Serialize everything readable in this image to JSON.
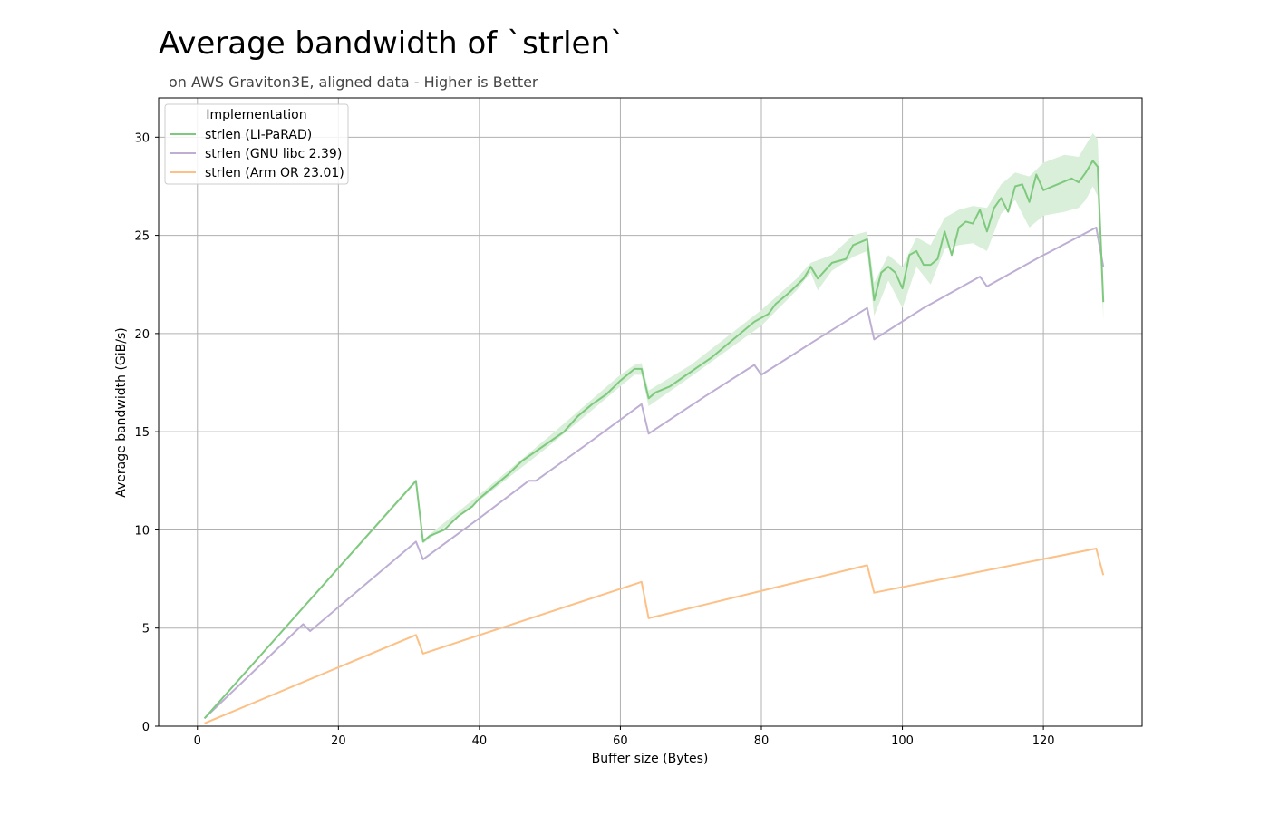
{
  "chart_data": {
    "type": "line",
    "title": "Average bandwidth of `strlen`",
    "subtitle": "on AWS Graviton3E, aligned data - Higher is Better",
    "xlabel": "Buffer size (Bytes)",
    "ylabel": "Average bandwidth (GiB/s)",
    "xlim": [
      -5.5,
      134
    ],
    "ylim": [
      0,
      32
    ],
    "xticks": [
      0,
      20,
      40,
      60,
      80,
      100,
      120
    ],
    "yticks": [
      0,
      5,
      10,
      15,
      20,
      25,
      30
    ],
    "grid": true,
    "legend": {
      "title": "Implementation",
      "position": "top-left"
    },
    "series": [
      {
        "name": "strlen (LI-PaRAD)",
        "color": "#7fc97f",
        "band_color": "#d9efd9",
        "points": [
          [
            1,
            0.4
          ],
          [
            31,
            12.5
          ],
          [
            32,
            9.4
          ],
          [
            33,
            9.7
          ],
          [
            35,
            10.0
          ],
          [
            37,
            10.7
          ],
          [
            39,
            11.2
          ],
          [
            40,
            11.6
          ],
          [
            42,
            12.2
          ],
          [
            44,
            12.8
          ],
          [
            46,
            13.5
          ],
          [
            48,
            14.0
          ],
          [
            50,
            14.5
          ],
          [
            52,
            15.0
          ],
          [
            54,
            15.8
          ],
          [
            56,
            16.4
          ],
          [
            58,
            16.9
          ],
          [
            60,
            17.6
          ],
          [
            62,
            18.2
          ],
          [
            63,
            18.2
          ],
          [
            64,
            16.7
          ],
          [
            65,
            17.0
          ],
          [
            67,
            17.3
          ],
          [
            69,
            17.8
          ],
          [
            71,
            18.3
          ],
          [
            73,
            18.8
          ],
          [
            75,
            19.4
          ],
          [
            77,
            20.0
          ],
          [
            79,
            20.6
          ],
          [
            81,
            21.0
          ],
          [
            82,
            21.5
          ],
          [
            84,
            22.1
          ],
          [
            86,
            22.8
          ],
          [
            87,
            23.4
          ],
          [
            88,
            22.8
          ],
          [
            90,
            23.6
          ],
          [
            92,
            23.8
          ],
          [
            93,
            24.5
          ],
          [
            95,
            24.8
          ],
          [
            96,
            21.7
          ],
          [
            97,
            23.1
          ],
          [
            98,
            23.4
          ],
          [
            99,
            23.1
          ],
          [
            100,
            22.3
          ],
          [
            101,
            24.0
          ],
          [
            102,
            24.2
          ],
          [
            103,
            23.5
          ],
          [
            104,
            23.5
          ],
          [
            105,
            23.8
          ],
          [
            106,
            25.2
          ],
          [
            107,
            24.0
          ],
          [
            108,
            25.4
          ],
          [
            109,
            25.7
          ],
          [
            110,
            25.6
          ],
          [
            111,
            26.3
          ],
          [
            112,
            25.2
          ],
          [
            113,
            26.4
          ],
          [
            114,
            26.9
          ],
          [
            115,
            26.2
          ],
          [
            116,
            27.5
          ],
          [
            117,
            27.6
          ],
          [
            118,
            26.7
          ],
          [
            119,
            28.1
          ],
          [
            120,
            27.3
          ],
          [
            122,
            27.6
          ],
          [
            124,
            27.9
          ],
          [
            125,
            27.7
          ],
          [
            126,
            28.2
          ],
          [
            127,
            28.8
          ],
          [
            127.7,
            28.5
          ],
          [
            128.5,
            21.6
          ]
        ],
        "band_upper": [
          [
            1,
            0.45
          ],
          [
            31,
            12.5
          ],
          [
            32,
            9.5
          ],
          [
            40,
            11.8
          ],
          [
            50,
            14.8
          ],
          [
            60,
            17.9
          ],
          [
            62,
            18.4
          ],
          [
            63,
            18.5
          ],
          [
            64,
            17.1
          ],
          [
            70,
            18.4
          ],
          [
            80,
            21.2
          ],
          [
            85,
            22.8
          ],
          [
            87,
            23.6
          ],
          [
            90,
            24.0
          ],
          [
            93,
            25.0
          ],
          [
            95,
            25.2
          ],
          [
            96,
            22.6
          ],
          [
            98,
            24.0
          ],
          [
            100,
            23.4
          ],
          [
            102,
            24.9
          ],
          [
            104,
            24.5
          ],
          [
            106,
            25.9
          ],
          [
            108,
            26.3
          ],
          [
            110,
            26.5
          ],
          [
            112,
            26.4
          ],
          [
            114,
            27.6
          ],
          [
            116,
            28.2
          ],
          [
            118,
            28.0
          ],
          [
            120,
            28.7
          ],
          [
            123,
            29.1
          ],
          [
            125,
            29.0
          ],
          [
            126,
            29.6
          ],
          [
            127,
            30.2
          ],
          [
            127.7,
            29.9
          ],
          [
            128.5,
            22.5
          ]
        ],
        "band_lower": [
          [
            128.5,
            20.7
          ],
          [
            127.7,
            27.0
          ],
          [
            127,
            27.5
          ],
          [
            126,
            26.8
          ],
          [
            125,
            26.4
          ],
          [
            123,
            26.2
          ],
          [
            120,
            26.0
          ],
          [
            118,
            25.4
          ],
          [
            116,
            26.8
          ],
          [
            114,
            26.1
          ],
          [
            112,
            24.2
          ],
          [
            110,
            24.6
          ],
          [
            108,
            24.5
          ],
          [
            106,
            24.3
          ],
          [
            104,
            22.5
          ],
          [
            102,
            23.4
          ],
          [
            100,
            21.3
          ],
          [
            98,
            22.7
          ],
          [
            96,
            20.9
          ],
          [
            95,
            24.2
          ],
          [
            93,
            23.9
          ],
          [
            90,
            23.2
          ],
          [
            88,
            22.2
          ],
          [
            87,
            23.1
          ],
          [
            85,
            22.2
          ],
          [
            80,
            20.4
          ],
          [
            70,
            17.8
          ],
          [
            64,
            16.3
          ],
          [
            63,
            17.9
          ],
          [
            62,
            17.9
          ],
          [
            60,
            17.3
          ],
          [
            50,
            14.3
          ],
          [
            40,
            11.5
          ],
          [
            32,
            9.3
          ],
          [
            31,
            12.4
          ],
          [
            1,
            0.35
          ]
        ]
      },
      {
        "name": "strlen (GNU libc 2.39)",
        "color": "#beaed4",
        "points": [
          [
            1,
            0.4
          ],
          [
            15,
            5.2
          ],
          [
            16,
            4.85
          ],
          [
            31,
            9.4
          ],
          [
            32,
            8.5
          ],
          [
            40,
            10.6
          ],
          [
            47,
            12.5
          ],
          [
            48,
            12.5
          ],
          [
            55,
            14.3
          ],
          [
            63,
            16.4
          ],
          [
            64,
            14.9
          ],
          [
            72,
            16.8
          ],
          [
            79,
            18.4
          ],
          [
            80,
            17.9
          ],
          [
            87,
            19.5
          ],
          [
            95,
            21.3
          ],
          [
            96,
            19.7
          ],
          [
            103,
            21.3
          ],
          [
            111,
            22.9
          ],
          [
            112,
            22.4
          ],
          [
            119,
            23.8
          ],
          [
            127.5,
            25.4
          ],
          [
            128.5,
            23.4
          ]
        ]
      },
      {
        "name": "strlen (Arm OR 23.01)",
        "color": "#fdc086",
        "points": [
          [
            1,
            0.15
          ],
          [
            31,
            4.65
          ],
          [
            32,
            3.7
          ],
          [
            63,
            7.35
          ],
          [
            64,
            5.5
          ],
          [
            95,
            8.2
          ],
          [
            96,
            6.8
          ],
          [
            127.5,
            9.05
          ],
          [
            128.5,
            7.7
          ]
        ]
      }
    ]
  }
}
